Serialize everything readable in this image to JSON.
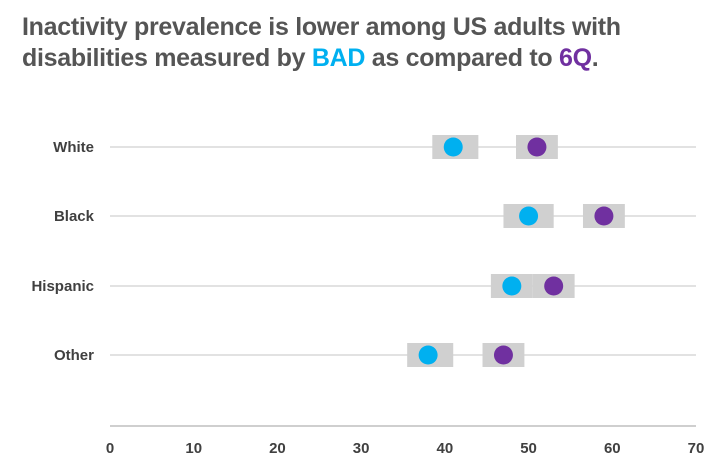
{
  "title": {
    "line1": "Inactivity prevalence is lower among US adults with",
    "line2_prefix": "disabilities measured by ",
    "bad_label": "BAD",
    "line2_middle": " as compared to ",
    "sixq_label": "6Q",
    "line2_suffix": "."
  },
  "colors": {
    "bad": "#00b0f0",
    "sixq": "#7030a0",
    "ci_box": "#d0d0d0",
    "gridline": "#d9d9d9",
    "axis": "#bfbfbf",
    "text": "#404040"
  },
  "chart_data": {
    "type": "scatter",
    "subtype": "dot-plot",
    "categories": [
      "White",
      "Black",
      "Hispanic",
      "Other"
    ],
    "series": [
      {
        "name": "BAD",
        "color": "#00b0f0",
        "values": [
          41,
          50,
          48,
          38
        ],
        "ci": [
          [
            38.5,
            44
          ],
          [
            47,
            53
          ],
          [
            45.5,
            50.5
          ],
          [
            35.5,
            41
          ]
        ]
      },
      {
        "name": "6Q",
        "color": "#7030a0",
        "values": [
          51,
          59,
          53,
          47
        ],
        "ci": [
          [
            48.5,
            53.5
          ],
          [
            56.5,
            61.5
          ],
          [
            50.5,
            55.5
          ],
          [
            44.5,
            49.5
          ]
        ]
      }
    ],
    "xlim": [
      0,
      70
    ],
    "xticks": [
      0,
      10,
      20,
      30,
      40,
      50,
      60,
      70
    ],
    "grid": true,
    "legend": "none"
  }
}
